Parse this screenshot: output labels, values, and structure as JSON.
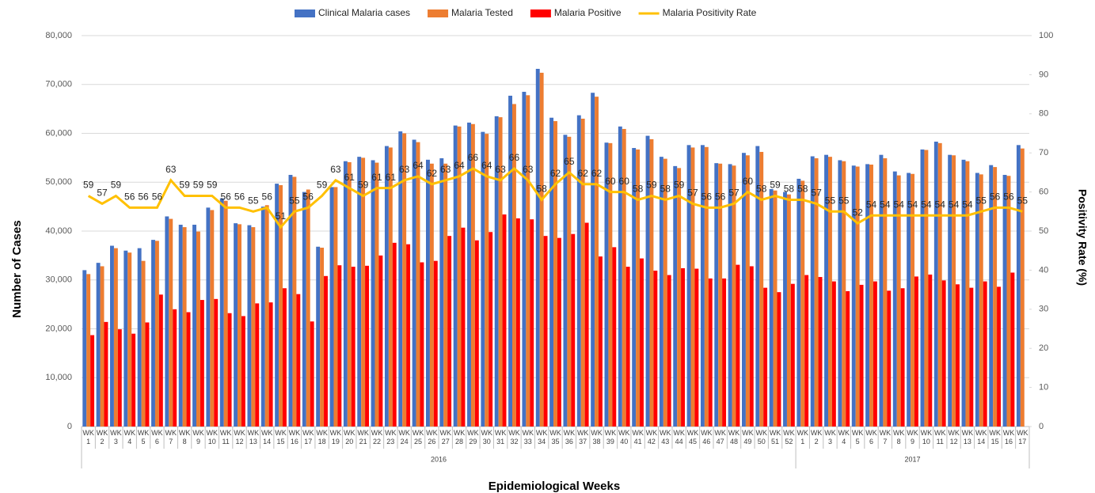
{
  "chart_data": {
    "type": "bar-line",
    "y_label": "Number of Cases",
    "y2_label": "Positivity Rate (%)",
    "x_label": "Epidemiological Weeks",
    "category_groups": [
      {
        "label": "2016",
        "categories": [
          "WK 1",
          "WK 2",
          "WK 3",
          "WK 4",
          "WK 5",
          "WK 6",
          "WK 7",
          "WK 8",
          "WK 9",
          "WK 10",
          "WK 11",
          "WK 12",
          "WK 13",
          "WK 14",
          "WK 15",
          "WK 16",
          "WK 17",
          "WK 18",
          "WK 19",
          "WK 20",
          "WK 21",
          "WK 22",
          "WK 23",
          "WK 24",
          "WK 25",
          "WK 26",
          "WK 27",
          "WK 28",
          "WK 29",
          "WK 30",
          "WK 31",
          "WK 32",
          "WK 33",
          "WK 34",
          "WK 35",
          "WK 36",
          "WK 37",
          "WK 38",
          "WK 39",
          "WK 40",
          "WK 41",
          "WK 42",
          "WK 43",
          "WK 44",
          "WK 45",
          "WK 46",
          "WK 47",
          "WK 48",
          "WK 49",
          "WK 50",
          "WK 51",
          "WK 52"
        ]
      },
      {
        "label": "2017",
        "categories": [
          "WK 1",
          "WK 2",
          "WK 3",
          "WK 4",
          "WK 5",
          "WK 6",
          "WK 7",
          "WK 8",
          "WK 9",
          "WK 10",
          "WK 11",
          "WK 12",
          "WK 13",
          "WK 14",
          "WK 15",
          "WK 16",
          "WK 17"
        ]
      }
    ],
    "series": [
      {
        "name": "Clinical Malaria cases",
        "color": "#4472c4",
        "kind": "bar",
        "values": [
          32000,
          33500,
          37000,
          36000,
          36500,
          38200,
          43000,
          41300,
          41300,
          44800,
          46700,
          41600,
          41200,
          45000,
          49700,
          51500,
          48000,
          36800,
          49000,
          54300,
          55200,
          54500,
          57400,
          60400,
          58700,
          54600,
          54900,
          61600,
          62200,
          60300,
          63500,
          67700,
          68500,
          73200,
          63200,
          59700,
          63700,
          68300,
          58100,
          61400,
          57000,
          59500,
          55200,
          53300,
          57600,
          57600,
          53900,
          53700,
          56000,
          57400,
          48600,
          48000,
          50700,
          55300,
          55600,
          54500,
          53400,
          53700,
          55600,
          52200,
          51900,
          56700,
          58300,
          55600,
          54600,
          51900,
          53500,
          51500,
          57600
        ]
      },
      {
        "name": "Malaria Tested",
        "color": "#ed7d31",
        "kind": "bar",
        "values": [
          31200,
          32800,
          36500,
          35600,
          33900,
          38000,
          42500,
          40800,
          39900,
          44300,
          46200,
          41400,
          40800,
          45300,
          49400,
          51100,
          48500,
          36600,
          49000,
          54100,
          55000,
          54000,
          57100,
          60000,
          58200,
          53800,
          53800,
          61400,
          61900,
          59900,
          63300,
          66000,
          67800,
          72400,
          62500,
          59300,
          63000,
          67500,
          58000,
          60900,
          56700,
          58800,
          54800,
          52900,
          57100,
          57200,
          53800,
          53400,
          55500,
          56200,
          48300,
          47500,
          50300,
          54900,
          55200,
          54300,
          53200,
          53600,
          54900,
          51400,
          51700,
          56600,
          58000,
          55500,
          54300,
          51600,
          53100,
          51300,
          56900
        ]
      },
      {
        "name": "Malaria Positive",
        "color": "#ff0000",
        "kind": "bar",
        "values": [
          18700,
          21400,
          19900,
          19000,
          21300,
          27000,
          24000,
          23400,
          25900,
          26100,
          23200,
          22600,
          25200,
          25400,
          28300,
          27100,
          21500,
          30800,
          33000,
          32700,
          32900,
          35000,
          37600,
          37300,
          33600,
          33900,
          39000,
          40700,
          38100,
          39800,
          43400,
          42600,
          42400,
          39000,
          38600,
          39400,
          41700,
          34800,
          36700,
          32700,
          34400,
          31900,
          31000,
          32400,
          32300,
          30300,
          30300,
          33100,
          32800,
          28400,
          27500,
          29200,
          31000,
          30600,
          29700,
          27700,
          29000,
          29700,
          27800,
          28300,
          30700,
          31100,
          29900,
          29100,
          28400,
          29700,
          28600,
          31500,
          null
        ]
      },
      {
        "name": "Malaria Positivity Rate",
        "color": "#ffc000",
        "kind": "line",
        "axis": "y2",
        "values": [
          59,
          57,
          59,
          56,
          56,
          56,
          63,
          59,
          59,
          59,
          56,
          56,
          55,
          56,
          51,
          55,
          56,
          59,
          63,
          61,
          59,
          61,
          61,
          63,
          64,
          62,
          63,
          64,
          66,
          64,
          63,
          66,
          63,
          58,
          62,
          65,
          62,
          62,
          60,
          60,
          58,
          59,
          58,
          59,
          57,
          56,
          56,
          57,
          60,
          58,
          59,
          58,
          58,
          57,
          55,
          55,
          52,
          54,
          54,
          54,
          54,
          54,
          54,
          54,
          54,
          55,
          56,
          56,
          55
        ]
      }
    ],
    "ylim": [
      0,
      80000
    ],
    "yticks": [
      0,
      {
        "value": 10000,
        "label": "10,000"
      },
      {
        "value": 20000,
        "label": "20,000"
      },
      {
        "value": 30000,
        "label": "30,000"
      },
      {
        "value": 40000,
        "label": "40,000"
      },
      {
        "value": 50000,
        "label": "50,000"
      },
      {
        "value": 60000,
        "label": "60,000"
      },
      {
        "value": 70000,
        "label": "70,000"
      },
      {
        "value": 80000,
        "label": "80,000"
      }
    ],
    "y2lim": [
      0,
      100
    ],
    "y2ticks": [
      0,
      10,
      20,
      30,
      40,
      50,
      60,
      70,
      80,
      90,
      100
    ],
    "grid": true,
    "legend": "top"
  }
}
